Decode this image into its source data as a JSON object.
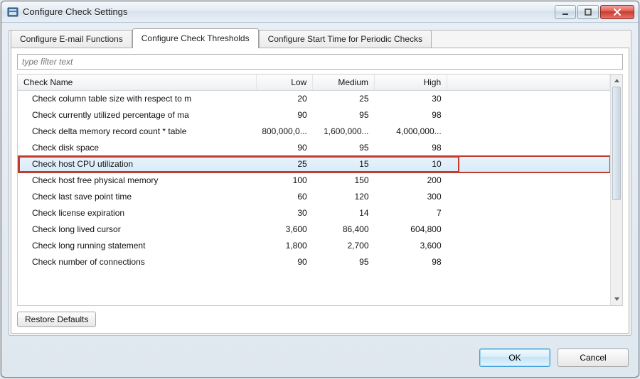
{
  "window": {
    "title": "Configure Check Settings"
  },
  "tabs": {
    "email": "Configure E-mail Functions",
    "thresholds": "Configure Check Thresholds",
    "starttime": "Configure Start Time for Periodic Checks",
    "active_index": 1
  },
  "filter": {
    "placeholder": "type filter text"
  },
  "columns": {
    "name": "Check Name",
    "low": "Low",
    "medium": "Medium",
    "high": "High"
  },
  "rows": [
    {
      "name": "Check column table size with respect to m",
      "low": "20",
      "medium": "25",
      "high": "30",
      "selected": false
    },
    {
      "name": "Check currently utilized percentage of ma",
      "low": "90",
      "medium": "95",
      "high": "98",
      "selected": false
    },
    {
      "name": "Check delta memory record count * table",
      "low": "800,000,0...",
      "medium": "1,600,000...",
      "high": "4,000,000...",
      "selected": false
    },
    {
      "name": "Check disk space",
      "low": "90",
      "medium": "95",
      "high": "98",
      "selected": false
    },
    {
      "name": "Check host CPU utilization",
      "low": "25",
      "medium": "15",
      "high": "10",
      "selected": true
    },
    {
      "name": "Check host free physical memory",
      "low": "100",
      "medium": "150",
      "high": "200",
      "selected": false
    },
    {
      "name": "Check last save point time",
      "low": "60",
      "medium": "120",
      "high": "300",
      "selected": false
    },
    {
      "name": "Check license expiration",
      "low": "30",
      "medium": "14",
      "high": "7",
      "selected": false
    },
    {
      "name": "Check long lived cursor",
      "low": "3,600",
      "medium": "86,400",
      "high": "604,800",
      "selected": false
    },
    {
      "name": "Check long running statement",
      "low": "1,800",
      "medium": "2,700",
      "high": "3,600",
      "selected": false
    },
    {
      "name": "Check number of connections",
      "low": "90",
      "medium": "95",
      "high": "98",
      "selected": false
    }
  ],
  "buttons": {
    "restore_defaults": "Restore Defaults",
    "ok": "OK",
    "cancel": "Cancel"
  },
  "colors": {
    "window_border": "#6b7a8a",
    "highlight_border": "#c23b2f",
    "selected_row_bg_top": "#eaf3fb",
    "selected_row_bg_bottom": "#d7ebf9",
    "primary_btn_border": "#3b9fd9"
  }
}
